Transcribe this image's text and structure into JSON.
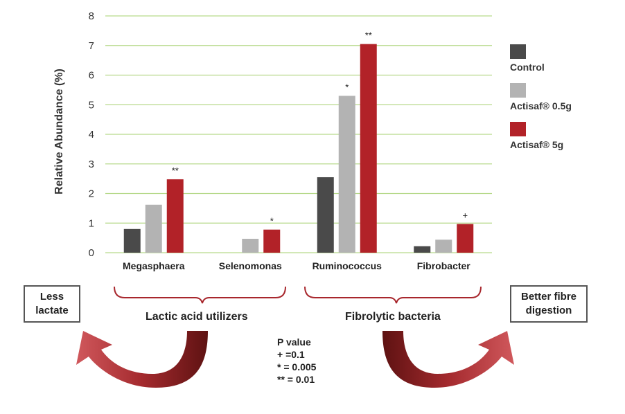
{
  "chart_data": {
    "type": "bar",
    "ylabel": "Relative Abundance (%)",
    "ylim": [
      0,
      8
    ],
    "yticks": [
      "0",
      "1",
      "2",
      "3",
      "4",
      "5",
      "6",
      "7",
      "8"
    ],
    "categories": [
      "Megasphaera",
      "Selenomonas",
      "Ruminococcus",
      "Fibrobacter"
    ],
    "series": [
      {
        "name": "Control",
        "color": "#4a4a4a",
        "values": [
          0.8,
          0,
          2.55,
          0.22
        ]
      },
      {
        "name": "Actisaf® 0.5g",
        "color": "#b3b3b3",
        "values": [
          1.62,
          0.47,
          5.3,
          0.44
        ]
      },
      {
        "name": "Actisaf® 5g",
        "color": "#b22228",
        "values": [
          2.48,
          0.78,
          7.05,
          0.97
        ]
      }
    ],
    "significance": [
      {
        "category": 0,
        "series": 2,
        "mark": "**"
      },
      {
        "category": 1,
        "series": 2,
        "mark": "*"
      },
      {
        "category": 2,
        "series": 1,
        "mark": "*"
      },
      {
        "category": 2,
        "series": 2,
        "mark": "**"
      },
      {
        "category": 3,
        "series": 2,
        "mark": "+"
      }
    ],
    "gridlines": true,
    "legend_position": "right"
  },
  "groups": [
    {
      "label": "Lactic acid utilizers"
    },
    {
      "label": "Fibrolytic bacteria"
    }
  ],
  "boxes": {
    "left": {
      "line1": "Less",
      "line2": "lactate"
    },
    "right": {
      "line1": "Better fibre",
      "line2": "digestion"
    }
  },
  "pvalue": {
    "title": "P value",
    "lines": [
      "+ =0.1",
      "* = 0.005",
      "** = 0.01"
    ]
  },
  "colors": {
    "grid": "#b6d98a",
    "brace": "#a8272d",
    "arrow_dark": "#6b1515",
    "arrow_light": "#c9454a"
  }
}
